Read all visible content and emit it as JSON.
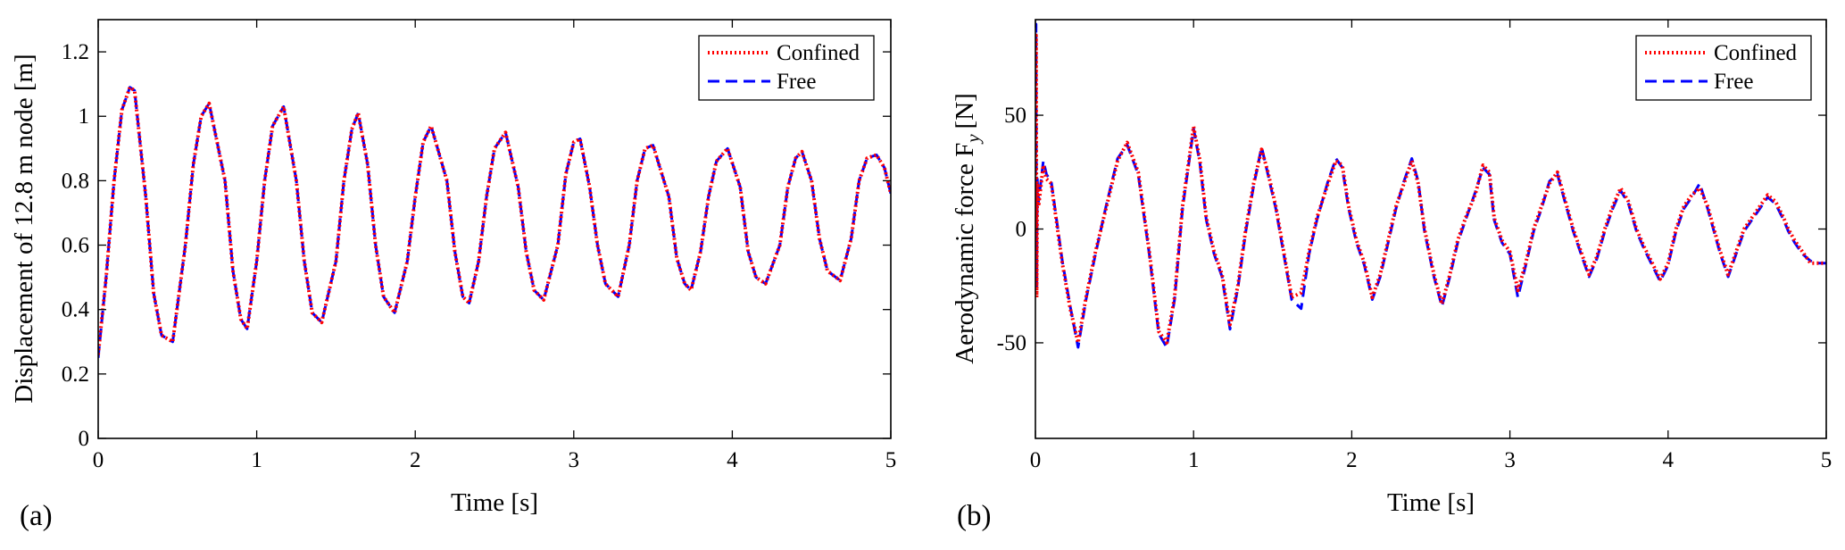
{
  "colors": {
    "confined": "#ff0000",
    "free": "#0000ff",
    "axis": "#000000"
  },
  "chart_data": [
    {
      "type": "line",
      "panel_label": "(a)",
      "xlabel": "Time [s]",
      "ylabel": "Displacement of 12.8 m node [m]",
      "xlim": [
        0,
        5
      ],
      "ylim": [
        0,
        1.3
      ],
      "xticks": [
        0,
        1,
        2,
        3,
        4,
        5
      ],
      "xtick_labels": [
        "0",
        "1",
        "2",
        "3",
        "4",
        "5"
      ],
      "yticks": [
        0,
        0.2,
        0.4,
        0.6,
        0.8,
        1,
        1.2
      ],
      "ytick_labels": [
        "0",
        "0.2",
        "0.4",
        "0.6",
        "0.8",
        "1",
        "1.2"
      ],
      "legend": {
        "position": "top-right",
        "entries": [
          "Confined",
          "Free"
        ]
      },
      "series": [
        {
          "name": "Confined",
          "style": "dotted",
          "x": [
            0,
            0.05,
            0.1,
            0.15,
            0.2,
            0.23,
            0.3,
            0.35,
            0.4,
            0.47,
            0.55,
            0.6,
            0.65,
            0.7,
            0.8,
            0.85,
            0.9,
            0.94,
            1.0,
            1.05,
            1.1,
            1.17,
            1.25,
            1.3,
            1.35,
            1.41,
            1.5,
            1.55,
            1.6,
            1.64,
            1.7,
            1.75,
            1.8,
            1.87,
            1.95,
            2.0,
            2.05,
            2.1,
            2.2,
            2.25,
            2.3,
            2.34,
            2.4,
            2.45,
            2.5,
            2.57,
            2.65,
            2.7,
            2.75,
            2.81,
            2.9,
            2.95,
            3.0,
            3.04,
            3.1,
            3.15,
            3.2,
            3.28,
            3.35,
            3.4,
            3.45,
            3.5,
            3.6,
            3.65,
            3.7,
            3.74,
            3.8,
            3.85,
            3.9,
            3.97,
            4.05,
            4.1,
            4.15,
            4.21,
            4.3,
            4.35,
            4.4,
            4.44,
            4.5,
            4.55,
            4.6,
            4.68,
            4.75,
            4.8,
            4.85,
            4.91,
            4.96,
            5.0
          ],
          "y": [
            0.26,
            0.5,
            0.8,
            1.02,
            1.09,
            1.08,
            0.75,
            0.45,
            0.32,
            0.3,
            0.6,
            0.85,
            1.0,
            1.04,
            0.8,
            0.52,
            0.37,
            0.34,
            0.55,
            0.8,
            0.97,
            1.03,
            0.8,
            0.55,
            0.39,
            0.36,
            0.55,
            0.8,
            0.96,
            1.01,
            0.85,
            0.6,
            0.44,
            0.39,
            0.55,
            0.75,
            0.92,
            0.97,
            0.8,
            0.58,
            0.44,
            0.42,
            0.55,
            0.75,
            0.9,
            0.95,
            0.78,
            0.58,
            0.46,
            0.43,
            0.6,
            0.82,
            0.92,
            0.93,
            0.78,
            0.6,
            0.48,
            0.44,
            0.6,
            0.8,
            0.9,
            0.91,
            0.75,
            0.56,
            0.48,
            0.46,
            0.58,
            0.75,
            0.86,
            0.9,
            0.78,
            0.58,
            0.5,
            0.48,
            0.6,
            0.78,
            0.87,
            0.89,
            0.8,
            0.62,
            0.52,
            0.49,
            0.62,
            0.8,
            0.87,
            0.88,
            0.84,
            0.76
          ]
        },
        {
          "name": "Free",
          "style": "dashed",
          "x": [
            0,
            0.05,
            0.1,
            0.15,
            0.2,
            0.23,
            0.3,
            0.35,
            0.4,
            0.47,
            0.55,
            0.6,
            0.65,
            0.7,
            0.8,
            0.85,
            0.9,
            0.94,
            1.0,
            1.05,
            1.1,
            1.17,
            1.25,
            1.3,
            1.35,
            1.41,
            1.5,
            1.55,
            1.6,
            1.64,
            1.7,
            1.75,
            1.8,
            1.87,
            1.95,
            2.0,
            2.05,
            2.1,
            2.2,
            2.25,
            2.3,
            2.34,
            2.4,
            2.45,
            2.5,
            2.57,
            2.65,
            2.7,
            2.75,
            2.81,
            2.9,
            2.95,
            3.0,
            3.04,
            3.1,
            3.15,
            3.2,
            3.28,
            3.35,
            3.4,
            3.45,
            3.5,
            3.6,
            3.65,
            3.7,
            3.74,
            3.8,
            3.85,
            3.9,
            3.97,
            4.05,
            4.1,
            4.15,
            4.21,
            4.3,
            4.35,
            4.4,
            4.44,
            4.5,
            4.55,
            4.6,
            4.68,
            4.75,
            4.8,
            4.85,
            4.91,
            4.96,
            5.0
          ],
          "y": [
            0.25,
            0.5,
            0.8,
            1.02,
            1.09,
            1.08,
            0.75,
            0.45,
            0.32,
            0.3,
            0.6,
            0.85,
            1.0,
            1.04,
            0.8,
            0.52,
            0.37,
            0.34,
            0.55,
            0.8,
            0.97,
            1.03,
            0.8,
            0.55,
            0.39,
            0.36,
            0.55,
            0.8,
            0.96,
            1.01,
            0.85,
            0.6,
            0.44,
            0.39,
            0.55,
            0.75,
            0.92,
            0.97,
            0.8,
            0.58,
            0.44,
            0.42,
            0.55,
            0.75,
            0.9,
            0.95,
            0.78,
            0.58,
            0.46,
            0.43,
            0.6,
            0.82,
            0.92,
            0.93,
            0.78,
            0.6,
            0.48,
            0.44,
            0.6,
            0.8,
            0.9,
            0.91,
            0.75,
            0.56,
            0.48,
            0.46,
            0.58,
            0.75,
            0.86,
            0.9,
            0.78,
            0.58,
            0.5,
            0.48,
            0.6,
            0.78,
            0.87,
            0.89,
            0.8,
            0.62,
            0.52,
            0.49,
            0.62,
            0.8,
            0.87,
            0.88,
            0.84,
            0.76
          ]
        }
      ]
    },
    {
      "type": "line",
      "panel_label": "(b)",
      "xlabel": "Time [s]",
      "ylabel": "Aerodynamic force F",
      "ylabel_subscript": "y",
      "ylabel_unit": "[N]",
      "xlim": [
        0,
        5
      ],
      "ylim": [
        -92,
        92
      ],
      "xticks": [
        0,
        1,
        2,
        3,
        4,
        5
      ],
      "xtick_labels": [
        "0",
        "1",
        "2",
        "3",
        "4",
        "5"
      ],
      "yticks": [
        -50,
        0,
        50
      ],
      "ytick_labels": [
        "-50",
        "0",
        "50"
      ],
      "legend": {
        "position": "top-right",
        "entries": [
          "Confined",
          "Free"
        ]
      },
      "series": [
        {
          "name": "Confined",
          "style": "dotted",
          "x": [
            0,
            0.004,
            0.008,
            0.012,
            0.02,
            0.05,
            0.07,
            0.1,
            0.13,
            0.17,
            0.22,
            0.27,
            0.32,
            0.38,
            0.45,
            0.52,
            0.58,
            0.65,
            0.72,
            0.78,
            0.83,
            0.88,
            0.93,
            0.97,
            1.0,
            1.04,
            1.08,
            1.13,
            1.18,
            1.23,
            1.28,
            1.33,
            1.38,
            1.43,
            1.47,
            1.52,
            1.57,
            1.62,
            1.68,
            1.73,
            1.78,
            1.85,
            1.9,
            1.94,
            1.98,
            2.03,
            2.08,
            2.13,
            2.18,
            2.23,
            2.28,
            2.33,
            2.38,
            2.42,
            2.46,
            2.52,
            2.57,
            2.62,
            2.67,
            2.72,
            2.78,
            2.83,
            2.87,
            2.9,
            2.95,
            3.0,
            3.05,
            3.1,
            3.15,
            3.2,
            3.25,
            3.3,
            3.34,
            3.4,
            3.45,
            3.5,
            3.55,
            3.6,
            3.65,
            3.7,
            3.75,
            3.8,
            3.85,
            3.9,
            3.95,
            4.0,
            4.05,
            4.1,
            4.15,
            4.2,
            4.25,
            4.29,
            4.33,
            4.38,
            4.43,
            4.48,
            4.53,
            4.58,
            4.63,
            4.68,
            4.73,
            4.76,
            4.8,
            4.85,
            4.9,
            4.95,
            5.0
          ],
          "y": [
            0,
            85,
            -30,
            20,
            10,
            28,
            22,
            20,
            5,
            -15,
            -35,
            -50,
            -30,
            -10,
            10,
            30,
            38,
            25,
            -10,
            -45,
            -50,
            -30,
            10,
            30,
            45,
            30,
            5,
            -10,
            -20,
            -42,
            -25,
            0,
            20,
            35,
            25,
            10,
            -10,
            -30,
            -28,
            -10,
            5,
            20,
            30,
            28,
            10,
            -5,
            -15,
            -30,
            -20,
            -5,
            10,
            20,
            30,
            20,
            0,
            -20,
            -33,
            -20,
            -5,
            5,
            15,
            28,
            25,
            5,
            -5,
            -10,
            -27,
            -15,
            0,
            10,
            20,
            25,
            15,
            0,
            -10,
            -20,
            -12,
            0,
            10,
            18,
            12,
            0,
            -8,
            -15,
            -22,
            -15,
            0,
            10,
            15,
            18,
            10,
            0,
            -10,
            -20,
            -10,
            0,
            5,
            10,
            15,
            12,
            5,
            0,
            -5,
            -10,
            -15,
            -15,
            -15
          ]
        },
        {
          "name": "Free",
          "style": "dashed",
          "x": [
            0,
            0.004,
            0.008,
            0.012,
            0.02,
            0.05,
            0.07,
            0.1,
            0.13,
            0.17,
            0.22,
            0.27,
            0.32,
            0.38,
            0.45,
            0.52,
            0.58,
            0.65,
            0.72,
            0.78,
            0.83,
            0.88,
            0.93,
            0.97,
            1.0,
            1.04,
            1.08,
            1.13,
            1.18,
            1.23,
            1.28,
            1.33,
            1.38,
            1.43,
            1.47,
            1.52,
            1.57,
            1.62,
            1.68,
            1.73,
            1.78,
            1.85,
            1.9,
            1.94,
            1.98,
            2.03,
            2.08,
            2.13,
            2.18,
            2.23,
            2.28,
            2.33,
            2.38,
            2.42,
            2.46,
            2.52,
            2.57,
            2.62,
            2.67,
            2.72,
            2.78,
            2.83,
            2.87,
            2.9,
            2.95,
            3.0,
            3.05,
            3.1,
            3.15,
            3.2,
            3.25,
            3.3,
            3.34,
            3.4,
            3.45,
            3.5,
            3.55,
            3.6,
            3.65,
            3.7,
            3.75,
            3.8,
            3.85,
            3.9,
            3.95,
            4.0,
            4.05,
            4.1,
            4.15,
            4.2,
            4.25,
            4.29,
            4.33,
            4.38,
            4.43,
            4.48,
            4.53,
            4.58,
            4.63,
            4.68,
            4.73,
            4.76,
            4.8,
            4.85,
            4.9,
            4.95,
            5.0
          ],
          "y": [
            0,
            90,
            -25,
            22,
            12,
            30,
            24,
            21,
            6,
            -14,
            -34,
            -52,
            -31,
            -11,
            11,
            31,
            37,
            24,
            -11,
            -46,
            -52,
            -31,
            9,
            29,
            44,
            29,
            4,
            -11,
            -21,
            -44,
            -26,
            -1,
            19,
            36,
            24,
            9,
            -11,
            -31,
            -35,
            -11,
            4,
            21,
            31,
            27,
            9,
            -6,
            -16,
            -31,
            -21,
            -6,
            9,
            21,
            31,
            21,
            -1,
            -21,
            -34,
            -21,
            -6,
            4,
            16,
            27,
            24,
            4,
            -6,
            -11,
            -30,
            -16,
            -1,
            9,
            21,
            24,
            14,
            -1,
            -11,
            -21,
            -13,
            -1,
            9,
            17,
            11,
            -1,
            -9,
            -16,
            -23,
            -16,
            -1,
            9,
            14,
            20,
            9,
            -1,
            -11,
            -21,
            -11,
            -1,
            4,
            9,
            14,
            11,
            4,
            -1,
            -6,
            -11,
            -14,
            -15,
            -15
          ]
        }
      ]
    }
  ]
}
